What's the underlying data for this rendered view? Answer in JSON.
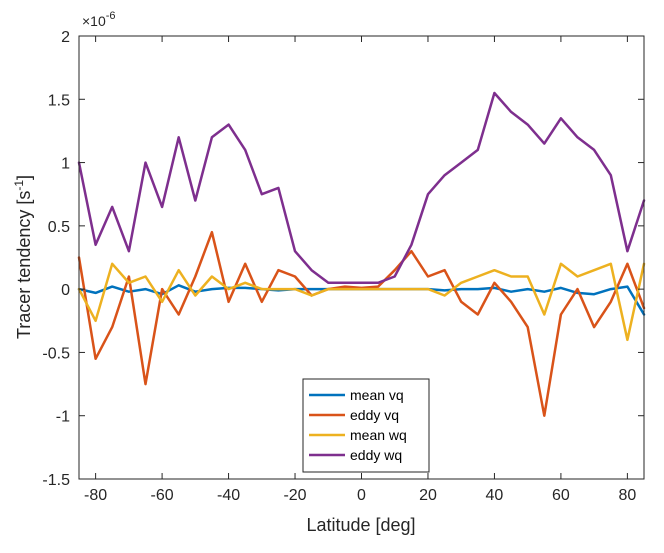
{
  "chart_data": {
    "type": "line",
    "title": "",
    "xlabel": "Latitude [deg]",
    "ylabel_main": "Tracer tendency [s",
    "ylabel_sup": "-1",
    "ylabel_end": "]",
    "y_multiplier_base": "×10",
    "y_multiplier_exp": "-6",
    "xlim": [
      -85,
      85
    ],
    "ylim": [
      -1.5,
      2
    ],
    "xticks": [
      -80,
      -60,
      -40,
      -20,
      0,
      20,
      40,
      60,
      80
    ],
    "xtick_labels": [
      "-80",
      "-60",
      "-40",
      "-20",
      "0",
      "20",
      "40",
      "60",
      "80"
    ],
    "yticks": [
      -1.5,
      -1,
      -0.5,
      0,
      0.5,
      1,
      1.5,
      2
    ],
    "ytick_labels": [
      "-1.5",
      "-1",
      "-0.5",
      "0",
      "0.5",
      "1",
      "1.5",
      "2"
    ],
    "legend_position": "lower-center",
    "grid": false,
    "x": [
      -85,
      -80,
      -75,
      -70,
      -65,
      -60,
      -55,
      -50,
      -45,
      -40,
      -35,
      -30,
      -25,
      -20,
      -15,
      -10,
      -5,
      0,
      5,
      10,
      15,
      20,
      25,
      30,
      35,
      40,
      45,
      50,
      55,
      60,
      65,
      70,
      75,
      80,
      85
    ],
    "series": [
      {
        "name": "mean vq",
        "color": "#0072BD",
        "values": [
          0.0,
          -0.03,
          0.02,
          -0.02,
          0.0,
          -0.04,
          0.03,
          -0.02,
          0.0,
          0.01,
          0.01,
          0.0,
          -0.01,
          0.0,
          0.0,
          0.0,
          0.0,
          0.0,
          0.0,
          0.0,
          0.0,
          0.0,
          -0.01,
          0.0,
          0.0,
          0.01,
          -0.02,
          0.0,
          -0.02,
          0.01,
          -0.03,
          -0.04,
          0.0,
          0.02,
          -0.2
        ]
      },
      {
        "name": "eddy vq",
        "color": "#D95319",
        "values": [
          0.25,
          -0.55,
          -0.3,
          0.1,
          -0.75,
          0.0,
          -0.2,
          0.1,
          0.45,
          -0.1,
          0.2,
          -0.1,
          0.15,
          0.1,
          -0.05,
          0.0,
          0.02,
          0.01,
          0.02,
          0.15,
          0.3,
          0.1,
          0.15,
          -0.1,
          -0.2,
          0.05,
          -0.1,
          -0.3,
          -1.0,
          -0.2,
          0.0,
          -0.3,
          -0.1,
          0.2,
          -0.15
        ]
      },
      {
        "name": "mean wq",
        "color": "#EDB120",
        "values": [
          0.0,
          -0.25,
          0.2,
          0.05,
          0.1,
          -0.1,
          0.15,
          -0.05,
          0.1,
          0.0,
          0.05,
          0.0,
          0.0,
          0.0,
          -0.05,
          0.0,
          0.0,
          0.0,
          0.0,
          0.0,
          0.0,
          0.0,
          -0.05,
          0.05,
          0.1,
          0.15,
          0.1,
          0.1,
          -0.2,
          0.2,
          0.1,
          0.15,
          0.2,
          -0.4,
          0.2
        ]
      },
      {
        "name": "eddy wq",
        "color": "#7E2F8E",
        "values": [
          1.0,
          0.35,
          0.65,
          0.3,
          1.0,
          0.65,
          1.2,
          0.7,
          1.2,
          1.3,
          1.1,
          0.75,
          0.8,
          0.3,
          0.15,
          0.05,
          0.05,
          0.05,
          0.05,
          0.1,
          0.35,
          0.75,
          0.9,
          1.0,
          1.1,
          1.55,
          1.4,
          1.3,
          1.15,
          1.35,
          1.2,
          1.1,
          0.9,
          0.3,
          0.7
        ]
      }
    ]
  }
}
